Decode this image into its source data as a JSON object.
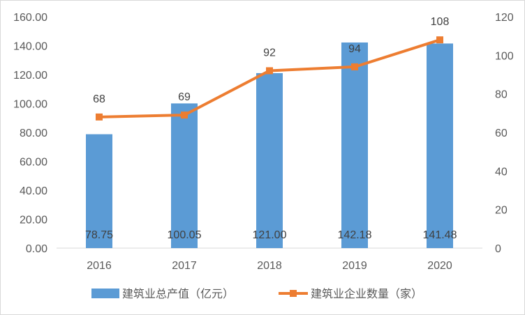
{
  "chart_data": {
    "type": "bar",
    "categories": [
      "2016",
      "2017",
      "2018",
      "2019",
      "2020"
    ],
    "series": [
      {
        "name": "建筑业总产值（亿元）",
        "type": "bar",
        "axis": "left",
        "values": [
          78.75,
          100.05,
          121.0,
          142.18,
          141.48
        ],
        "labels": [
          "78.75",
          "100.05",
          "121.00",
          "142.18",
          "141.48"
        ],
        "color": "#5b9bd5"
      },
      {
        "name": "建筑业企业数量（家）",
        "type": "line",
        "axis": "right",
        "values": [
          68,
          69,
          92,
          94,
          108
        ],
        "labels": [
          "68",
          "69",
          "92",
          "94",
          "108"
        ],
        "color": "#ed7d31"
      }
    ],
    "y_left": {
      "range": [
        0,
        160
      ],
      "ticks": [
        "0.00",
        "20.00",
        "40.00",
        "60.00",
        "80.00",
        "100.00",
        "120.00",
        "140.00",
        "160.00"
      ]
    },
    "y_right": {
      "range": [
        0,
        120
      ],
      "ticks": [
        "0",
        "20",
        "40",
        "60",
        "80",
        "100",
        "120"
      ]
    },
    "grid": false,
    "legend": "bottom",
    "title": "",
    "xlabel": "",
    "ylabel": ""
  }
}
